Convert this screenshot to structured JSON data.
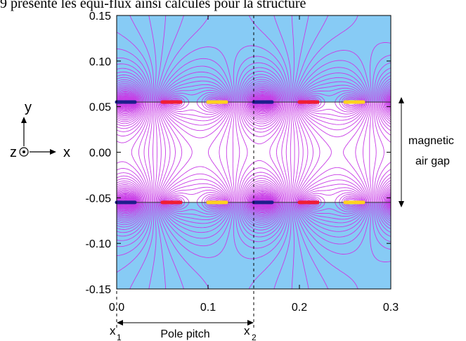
{
  "caption_line": "9 présente les équi-flux ainsi calculés pour la structure",
  "chart_data": {
    "type": "contour",
    "x_ticks": [
      "0.0",
      "0.1",
      "0.2",
      "0.3"
    ],
    "y_ticks": [
      "0.15",
      "0.10",
      "0.05",
      "0.00",
      "-0.05",
      "-0.10",
      "-0.15"
    ],
    "xlim": [
      0.0,
      0.3
    ],
    "ylim": [
      -0.15,
      0.15
    ],
    "grid": false,
    "magnet_planes_y": [
      0.055,
      -0.055
    ],
    "air_gap_half_height": 0.055,
    "pole_pitch": 0.15,
    "x1": 0.0,
    "x2": 0.15,
    "conductor_segments": [
      {
        "phase": "blue",
        "x": [
          0.0,
          0.02
        ]
      },
      {
        "phase": "red",
        "x": [
          0.05,
          0.07
        ]
      },
      {
        "phase": "yellow",
        "x": [
          0.1,
          0.12
        ]
      },
      {
        "phase": "blue",
        "x": [
          0.15,
          0.17
        ]
      },
      {
        "phase": "red",
        "x": [
          0.2,
          0.22
        ]
      },
      {
        "phase": "yellow",
        "x": [
          0.25,
          0.27
        ]
      }
    ],
    "annotations": {
      "air_gap_label": [
        "magnetic",
        "air gap"
      ],
      "pole_pitch_label": "Pole pitch",
      "x1_label": "x",
      "x1_sub": "1",
      "x2_label": "x",
      "x2_sub": "2",
      "axis_y": "y",
      "axis_x": "x",
      "axis_z": "z"
    },
    "colors": {
      "iron": "#87cbf5",
      "air": "#ffffff",
      "flux_lines": "#c83ce6",
      "blue": "#1e1e8c",
      "red": "#f01e32",
      "yellow": "#ffd21e"
    }
  }
}
